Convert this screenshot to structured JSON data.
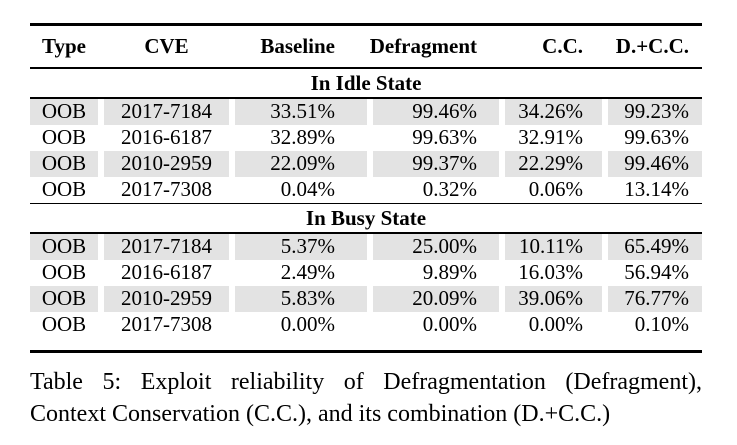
{
  "figure": {
    "columns": [
      "Type",
      "CVE",
      "Baseline",
      "Defragment",
      "C.C.",
      "D.+C.C."
    ],
    "sections": [
      {
        "label": "In Idle State",
        "rows": [
          [
            "OOB",
            "2017-7184",
            "33.51%",
            "99.46%",
            "34.26%",
            "99.23%"
          ],
          [
            "OOB",
            "2016-6187",
            "32.89%",
            "99.63%",
            "32.91%",
            "99.63%"
          ],
          [
            "OOB",
            "2010-2959",
            "22.09%",
            "99.37%",
            "22.29%",
            "99.46%"
          ],
          [
            "OOB",
            "2017-7308",
            "0.04%",
            "0.32%",
            "0.06%",
            "13.14%"
          ]
        ]
      },
      {
        "label": "In Busy State",
        "rows": [
          [
            "OOB",
            "2017-7184",
            "5.37%",
            "25.00%",
            "10.11%",
            "65.49%"
          ],
          [
            "OOB",
            "2016-6187",
            "2.49%",
            "9.89%",
            "16.03%",
            "56.94%"
          ],
          [
            "OOB",
            "2010-2959",
            "5.83%",
            "20.09%",
            "39.06%",
            "76.77%"
          ],
          [
            "OOB",
            "2017-7308",
            "0.00%",
            "0.00%",
            "0.00%",
            "0.10%"
          ]
        ]
      }
    ],
    "shading_color": "#e3e3e3",
    "text_color": "#000000",
    "caption_line1": "Table 5: Exploit reliability of Defragmentation (Defragment),",
    "caption_line2": "Context Conservation (C.C.), and its combination (D.+C.C.)"
  }
}
